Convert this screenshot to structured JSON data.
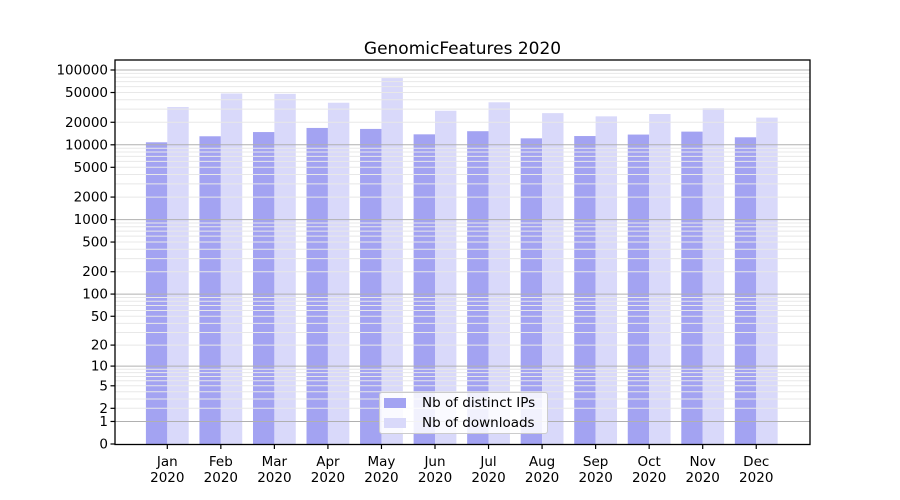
{
  "chart_data": {
    "type": "bar",
    "title": "GenomicFeatures 2020",
    "xlabel": "",
    "ylabel": "",
    "categories": [
      "Jan 2020",
      "Feb 2020",
      "Mar 2020",
      "Apr 2020",
      "May 2020",
      "Jun 2020",
      "Jul 2020",
      "Aug 2020",
      "Sep 2020",
      "Oct 2020",
      "Nov 2020",
      "Dec 2020"
    ],
    "series": [
      {
        "name": "Nb of distinct IPs",
        "color": "#a3a3f2",
        "values": [
          10800,
          13000,
          14800,
          16800,
          16300,
          13800,
          15200,
          12200,
          13100,
          13700,
          15000,
          12600
        ]
      },
      {
        "name": "Nb of downloads",
        "color": "#d9d9fa",
        "values": [
          32000,
          48500,
          48000,
          36500,
          78000,
          28500,
          37000,
          26500,
          24000,
          25800,
          30800,
          23100
        ]
      }
    ],
    "y_axis": {
      "scale": "log(1+v)",
      "ticks": [
        0,
        1,
        2,
        5,
        10,
        20,
        50,
        100,
        200,
        500,
        1000,
        2000,
        5000,
        10000,
        20000,
        50000,
        100000
      ],
      "max": 136000
    },
    "grid": {
      "major_color": "#b0b0b0",
      "minor_color": "#e8e8e8",
      "minor_per_decade": [
        2,
        3,
        4,
        5,
        6,
        7,
        8,
        9
      ]
    },
    "legend": {
      "position": "lower center inside plot"
    },
    "axis_color": "#000000"
  }
}
